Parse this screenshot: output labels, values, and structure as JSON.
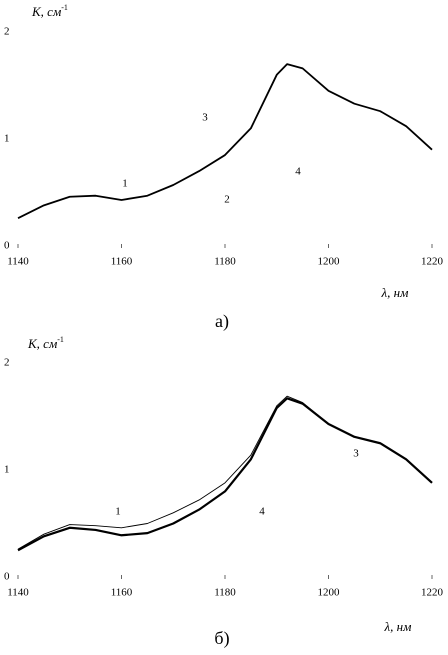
{
  "chart_data": [
    {
      "type": "line",
      "ylabel": "K, см",
      "ylabel_exponent": "-1",
      "xlabel": "λ, нм",
      "caption": "а)",
      "x": [
        1140,
        1145,
        1150,
        1155,
        1160,
        1165,
        1170,
        1175,
        1180,
        1185,
        1190,
        1192,
        1195,
        1200,
        1205,
        1210,
        1215,
        1220
      ],
      "series": [
        {
          "color": "#000000",
          "values": [
            0.26,
            0.38,
            0.46,
            0.47,
            0.43,
            0.47,
            0.57,
            0.7,
            0.85,
            1.1,
            1.6,
            1.7,
            1.66,
            1.45,
            1.33,
            1.26,
            1.12,
            0.9
          ]
        }
      ],
      "xlim": [
        1140,
        1220
      ],
      "xticks": [
        1140,
        1160,
        1180,
        1200,
        1220
      ],
      "ylim": [
        0,
        2
      ],
      "yticks": [
        0,
        1,
        2
      ],
      "annotations": [
        "1",
        "3",
        "2",
        "4"
      ]
    },
    {
      "type": "line",
      "ylabel": "K, см",
      "ylabel_exponent": "-1",
      "xlabel": "λ, нм",
      "caption": "б)",
      "x": [
        1140,
        1145,
        1150,
        1155,
        1160,
        1165,
        1170,
        1175,
        1180,
        1185,
        1190,
        1192,
        1195,
        1200,
        1205,
        1210,
        1215,
        1220
      ],
      "series": [
        {
          "color": "#000000",
          "values": [
            0.25,
            0.38,
            0.46,
            0.44,
            0.39,
            0.41,
            0.5,
            0.63,
            0.8,
            1.1,
            1.58,
            1.67,
            1.62,
            1.43,
            1.31,
            1.25,
            1.1,
            0.88
          ]
        },
        {
          "color": "#000000",
          "values": [
            0.26,
            0.4,
            0.49,
            0.48,
            0.46,
            0.5,
            0.6,
            0.72,
            0.88,
            1.14,
            1.6,
            1.69,
            1.63,
            1.43,
            1.31,
            1.25,
            1.1,
            0.88
          ]
        }
      ],
      "xlim": [
        1140,
        1220
      ],
      "xticks": [
        1140,
        1160,
        1180,
        1200,
        1220
      ],
      "ylim": [
        0,
        2
      ],
      "yticks": [
        0,
        1,
        2
      ],
      "annotations": [
        "1",
        "4",
        "3"
      ]
    }
  ]
}
